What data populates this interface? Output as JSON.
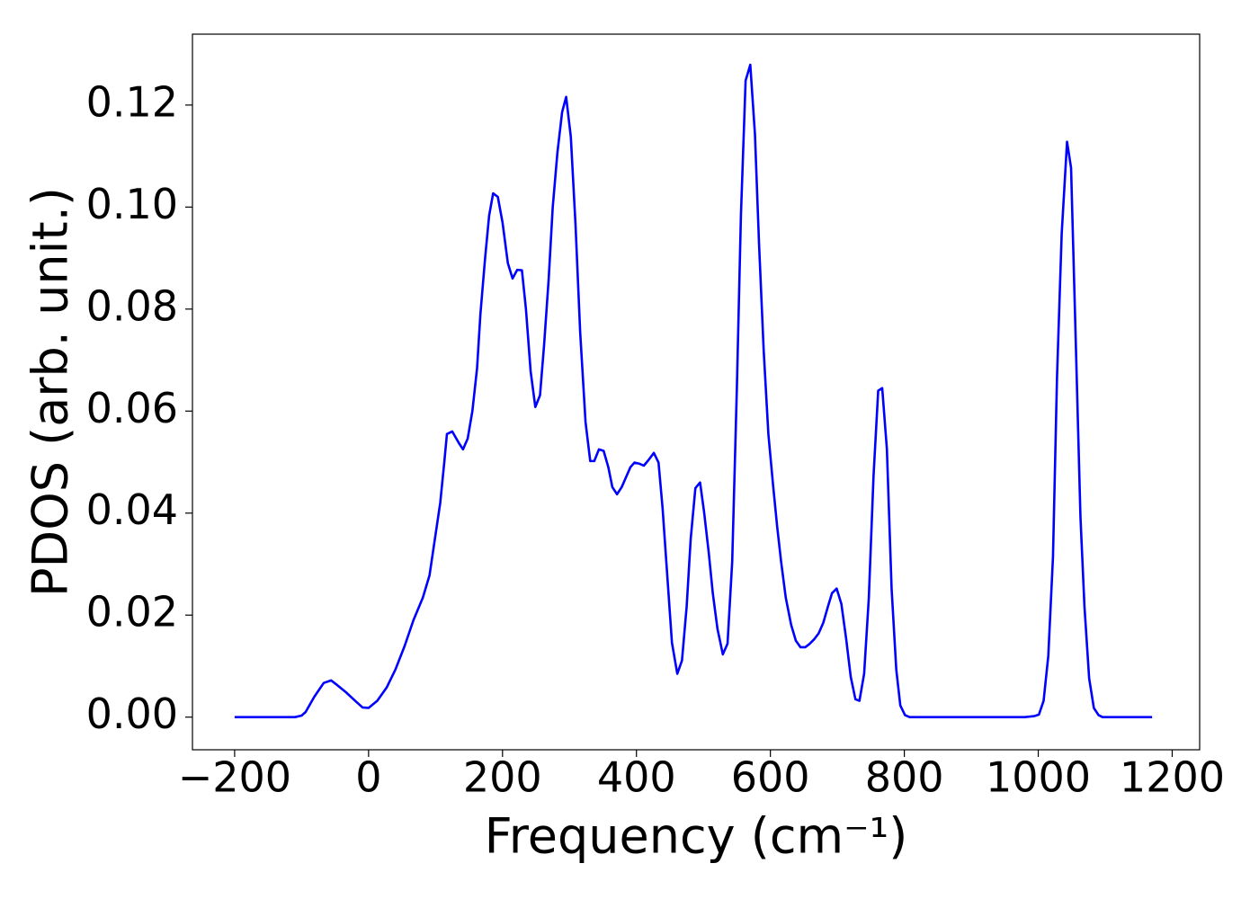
{
  "chart_data": {
    "type": "line",
    "xlabel": "Frequency (cm⁻¹)",
    "ylabel": "PDOS (arb. unit.)",
    "xlim": [
      -263,
      1241
    ],
    "ylim": [
      -0.0064,
      0.1339
    ],
    "xticks": [
      {
        "value": -200,
        "label": "−200"
      },
      0,
      200,
      400,
      600,
      800,
      1000,
      1200
    ],
    "yticks": [
      {
        "value": 0,
        "label": "0.00"
      },
      {
        "value": 0.02,
        "label": "0.02"
      },
      {
        "value": 0.04,
        "label": "0.04"
      },
      {
        "value": 0.06,
        "label": "0.06"
      },
      {
        "value": 0.08,
        "label": "0.08"
      },
      {
        "value": 0.1,
        "label": "0.10"
      },
      {
        "value": 0.12,
        "label": "0.12"
      }
    ],
    "grid": false,
    "series": [
      {
        "color": "#0000ff",
        "x": [
          -200,
          -190,
          -180,
          -170,
          -160,
          -150,
          -140,
          -130,
          -120,
          -110,
          -100,
          -94,
          -81,
          -67,
          -56,
          -47,
          -34,
          -20,
          -9,
          0,
          13,
          27,
          40,
          54,
          67,
          81,
          91,
          99,
          107,
          113,
          117,
          125,
          135,
          141,
          148,
          155,
          162,
          167,
          174,
          180,
          186,
          193,
          200,
          208,
          215,
          222,
          229,
          235,
          242,
          249,
          256,
          262,
          269,
          275,
          282,
          289,
          295,
          302,
          309,
          316,
          324,
          331,
          337,
          344,
          351,
          358,
          364,
          371,
          378,
          385,
          391,
          397,
          404,
          411,
          418,
          426,
          433,
          439,
          446,
          453,
          461,
          468,
          475,
          481,
          488,
          495,
          501,
          508,
          514,
          521,
          529,
          536,
          543,
          550,
          556,
          563,
          570,
          577,
          583,
          590,
          597,
          604,
          610,
          616,
          623,
          631,
          638,
          645,
          652,
          658,
          665,
          672,
          679,
          686,
          692,
          699,
          706,
          713,
          720,
          727,
          733,
          740,
          747,
          754,
          761,
          767,
          774,
          781,
          788,
          794,
          801,
          808,
          820,
          840,
          860,
          880,
          900,
          920,
          940,
          960,
          980,
          994,
          1001,
          1008,
          1015,
          1022,
          1028,
          1035,
          1043,
          1049,
          1056,
          1063,
          1069,
          1076,
          1083,
          1090,
          1096,
          1110,
          1130,
          1150,
          1170
        ],
        "values": [
          0,
          0,
          0,
          0,
          0,
          0,
          0,
          0,
          0,
          0,
          0.0003,
          0.001,
          0.004,
          0.0067,
          0.0072,
          0.0063,
          0.0049,
          0.0032,
          0.0019,
          0.0018,
          0.0032,
          0.0058,
          0.0093,
          0.014,
          0.019,
          0.0234,
          0.0278,
          0.0349,
          0.042,
          0.0499,
          0.0555,
          0.056,
          0.0537,
          0.0525,
          0.0546,
          0.06,
          0.0684,
          0.079,
          0.09,
          0.0983,
          0.1027,
          0.102,
          0.097,
          0.089,
          0.086,
          0.0877,
          0.0876,
          0.08,
          0.0678,
          0.0608,
          0.0631,
          0.0728,
          0.086,
          0.1,
          0.1107,
          0.1186,
          0.1216,
          0.1138,
          0.0966,
          0.0754,
          0.0578,
          0.0502,
          0.0502,
          0.0525,
          0.0522,
          0.049,
          0.0451,
          0.0437,
          0.0451,
          0.0472,
          0.049,
          0.0499,
          0.0497,
          0.0493,
          0.0504,
          0.0518,
          0.0499,
          0.041,
          0.0278,
          0.0146,
          0.0085,
          0.0111,
          0.0217,
          0.0349,
          0.0449,
          0.046,
          0.0402,
          0.0322,
          0.0243,
          0.0173,
          0.0123,
          0.0144,
          0.0305,
          0.0648,
          0.0983,
          0.1248,
          0.1279,
          0.1142,
          0.093,
          0.0719,
          0.0555,
          0.0455,
          0.0375,
          0.0305,
          0.0234,
          0.0181,
          0.015,
          0.0137,
          0.0137,
          0.0143,
          0.0152,
          0.0164,
          0.0185,
          0.0217,
          0.0243,
          0.0252,
          0.0222,
          0.0155,
          0.0079,
          0.0035,
          0.0032,
          0.0085,
          0.0234,
          0.0472,
          0.064,
          0.0645,
          0.0525,
          0.0252,
          0.0093,
          0.0023,
          0.0004,
          0,
          0,
          0,
          0,
          0,
          0,
          0,
          0,
          0,
          0,
          0.0002,
          0.0005,
          0.0032,
          0.012,
          0.0314,
          0.0666,
          0.0948,
          0.1128,
          0.1077,
          0.0737,
          0.0393,
          0.0217,
          0.0076,
          0.0018,
          0.0004,
          0,
          0,
          0,
          0,
          0
        ]
      }
    ]
  }
}
